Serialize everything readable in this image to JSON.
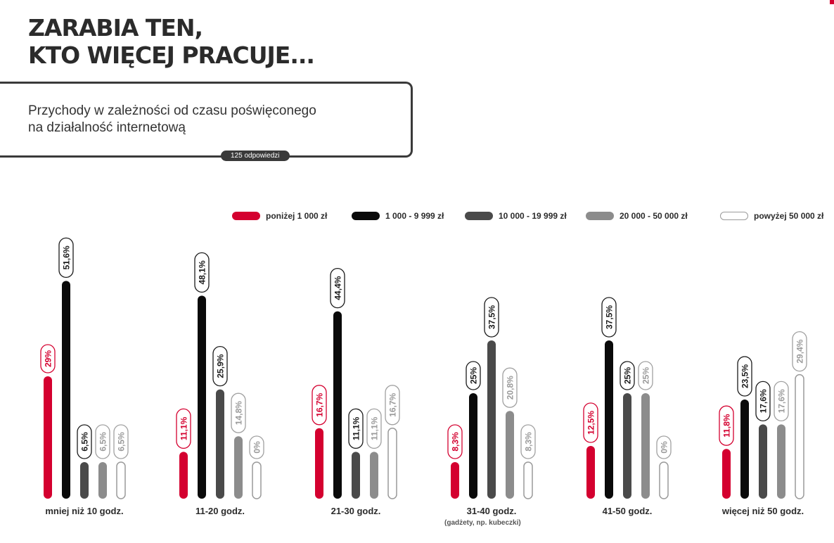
{
  "title_lines": [
    "ZARABIA TEN,",
    "KTO WIĘCEJ PRACUJE..."
  ],
  "subtitle_lines": [
    "Przychody w zależności od czasu poświęconego",
    "na działalność internetową"
  ],
  "responses_badge": "125 odpowiedzi",
  "footnote": "(gadżety, np. kubeczki)",
  "colors": {
    "accent": "#d4002f",
    "black": "#0a0a0a",
    "dark_gray": "#4a4a4a",
    "light_gray": "#8c8c8c",
    "outline": "#9a9a9a"
  },
  "chart_data": {
    "type": "bar",
    "title": "Przychody w zależności od czasu poświęconego na działalność internetową",
    "categories": [
      "mniej niż 10 godz.",
      "11-20 godz.",
      "21-30 godz.",
      "31-40 godz.",
      "41-50 godz.",
      "więcej niż 50 godz."
    ],
    "series": [
      {
        "name": "poniżej 1 000 zł",
        "color": "#d4002f",
        "style": "filled",
        "values": [
          29,
          11.1,
          16.7,
          8.3,
          12.5,
          11.8
        ],
        "labels": [
          "29%",
          "11,1%",
          "16,7%",
          "8,3%",
          "12,5%",
          "11,8%"
        ]
      },
      {
        "name": "1 000 - 9 999 zł",
        "color": "#0a0a0a",
        "style": "filled",
        "values": [
          51.6,
          48.1,
          44.4,
          25,
          37.5,
          23.5
        ],
        "labels": [
          "51,6%",
          "48,1%",
          "44,4%",
          "25%",
          "37,5%",
          "23,5%"
        ]
      },
      {
        "name": "10 000 - 19 999 zł",
        "color": "#4a4a4a",
        "style": "filled",
        "values": [
          6.5,
          25.9,
          11.1,
          37.5,
          25,
          17.6
        ],
        "labels": [
          "6,5%",
          "25,9%",
          "11,1%",
          "37,5%",
          "25%",
          "17,6%"
        ]
      },
      {
        "name": "20 000 - 50 000 zł",
        "color": "#8c8c8c",
        "style": "filled",
        "values": [
          6.5,
          14.8,
          11.1,
          20.8,
          25,
          17.6
        ],
        "labels": [
          "6,5%",
          "14,8%",
          "11,1%",
          "20,8%",
          "25%",
          "17,6%"
        ]
      },
      {
        "name": "powyżej 50 000 zł",
        "color": "#9a9a9a",
        "style": "outline",
        "values": [
          6.5,
          0,
          16.7,
          8.3,
          0,
          29.4
        ],
        "labels": [
          "6,5%",
          "0%",
          "16,7%",
          "8,3%",
          "0%",
          "29,4%"
        ]
      }
    ],
    "ylim": [
      0,
      60
    ],
    "legend": "top",
    "grid": false,
    "value_unit": "%"
  }
}
